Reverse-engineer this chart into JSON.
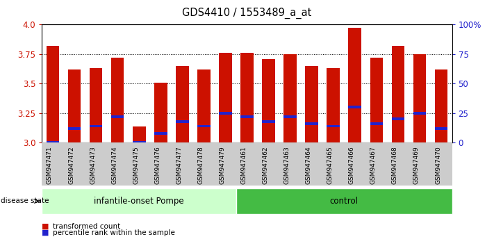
{
  "title": "GDS4410 / 1553489_a_at",
  "samples": [
    "GSM947471",
    "GSM947472",
    "GSM947473",
    "GSM947474",
    "GSM947475",
    "GSM947476",
    "GSM947477",
    "GSM947478",
    "GSM947479",
    "GSM947461",
    "GSM947462",
    "GSM947463",
    "GSM947464",
    "GSM947465",
    "GSM947466",
    "GSM947467",
    "GSM947468",
    "GSM947469",
    "GSM947470"
  ],
  "red_values": [
    3.82,
    3.62,
    3.63,
    3.72,
    3.14,
    3.51,
    3.65,
    3.62,
    3.76,
    3.76,
    3.71,
    3.75,
    3.65,
    3.63,
    3.97,
    3.72,
    3.82,
    3.75,
    3.62
  ],
  "blue_values": [
    3.0,
    3.12,
    3.14,
    3.22,
    3.0,
    3.08,
    3.18,
    3.14,
    3.25,
    3.22,
    3.18,
    3.22,
    3.16,
    3.14,
    3.3,
    3.16,
    3.2,
    3.25,
    3.12
  ],
  "group1_label": "infantile-onset Pompe",
  "group2_label": "control",
  "group1_count": 9,
  "group2_count": 10,
  "disease_state_label": "disease state",
  "legend_red": "transformed count",
  "legend_blue": "percentile rank within the sample",
  "ymin": 3.0,
  "ymax": 4.0,
  "yticks": [
    3.0,
    3.25,
    3.5,
    3.75,
    4.0
  ],
  "right_yticks": [
    0,
    25,
    50,
    75,
    100
  ],
  "right_ytick_labels": [
    "0",
    "25",
    "50",
    "75",
    "100%"
  ],
  "bar_color": "#cc1100",
  "blue_color": "#2222cc",
  "group1_bg": "#ccffcc",
  "group2_bg": "#44bb44",
  "tick_bg": "#cccccc",
  "bar_width": 0.6
}
